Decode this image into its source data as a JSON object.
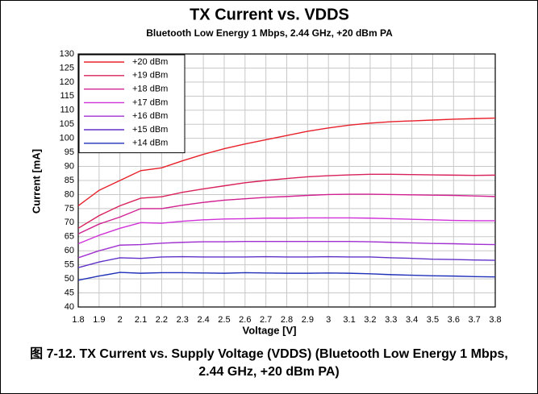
{
  "chart_data": {
    "type": "line",
    "title": "TX Current vs. VDDS",
    "subtitle": "Bluetooth Low Energy 1 Mbps, 2.44 GHz, +20 dBm PA",
    "xlabel": "Voltage [V]",
    "ylabel": "Current [mA]",
    "caption": "图 7-12. TX Current vs. Supply Voltage (VDDS) (Bluetooth Low Energy 1 Mbps, 2.44 GHz, +20 dBm PA)",
    "x": [
      1.8,
      1.9,
      2,
      2.1,
      2.2,
      2.3,
      2.4,
      2.5,
      2.6,
      2.7,
      2.8,
      2.9,
      3,
      3.1,
      3.2,
      3.3,
      3.4,
      3.5,
      3.6,
      3.7,
      3.8
    ],
    "xlim": [
      1.8,
      3.8
    ],
    "xticks": [
      1.8,
      1.9,
      2,
      2.1,
      2.2,
      2.3,
      2.4,
      2.5,
      2.6,
      2.7,
      2.8,
      2.9,
      3,
      3.1,
      3.2,
      3.3,
      3.4,
      3.5,
      3.6,
      3.7,
      3.8
    ],
    "ylim": [
      40,
      130
    ],
    "yticks": [
      40,
      45,
      50,
      55,
      60,
      65,
      70,
      75,
      80,
      85,
      90,
      95,
      100,
      105,
      110,
      115,
      120,
      125,
      130
    ],
    "grid": true,
    "legend": "upper-left",
    "series": [
      {
        "name": "+20 dBm",
        "color": "#e8202a",
        "values": [
          76,
          81.5,
          85,
          88.5,
          89.5,
          92,
          94.3,
          96.3,
          98,
          99.5,
          101,
          102.5,
          103.7,
          104.7,
          105.4,
          105.9,
          106.2,
          106.5,
          106.8,
          107,
          107.2
        ]
      },
      {
        "name": "+19 dBm",
        "color": "#d8205a",
        "values": [
          68,
          72.5,
          76,
          78.7,
          79.2,
          80.8,
          82,
          83.1,
          84.2,
          85,
          85.7,
          86.3,
          86.7,
          87,
          87.2,
          87.2,
          87.1,
          87,
          86.9,
          86.8,
          86.9
        ]
      },
      {
        "name": "+18 dBm",
        "color": "#d02090",
        "values": [
          66,
          69.5,
          72,
          75,
          75,
          76.2,
          77.2,
          78,
          78.5,
          79,
          79.3,
          79.7,
          80,
          80.1,
          80.1,
          80,
          79.9,
          79.8,
          79.7,
          79.5,
          79.3
        ]
      },
      {
        "name": "+17 dBm",
        "color": "#d030d8",
        "values": [
          62.5,
          65.5,
          68,
          70,
          69.8,
          70.5,
          71,
          71.3,
          71.4,
          71.6,
          71.6,
          71.7,
          71.7,
          71.7,
          71.6,
          71.4,
          71.2,
          71,
          70.8,
          70.7,
          70.7
        ]
      },
      {
        "name": "+16 dBm",
        "color": "#a030d0",
        "values": [
          57.5,
          60,
          62,
          62.2,
          62.7,
          63,
          63.2,
          63.2,
          63.3,
          63.3,
          63.3,
          63.3,
          63.3,
          63.3,
          63.2,
          63,
          62.8,
          62.6,
          62.5,
          62.3,
          62.2
        ]
      },
      {
        "name": "+15 dBm",
        "color": "#6030c8",
        "values": [
          54,
          56,
          57.5,
          57.3,
          57.8,
          57.9,
          57.8,
          57.8,
          57.8,
          57.9,
          57.8,
          57.8,
          57.9,
          57.8,
          57.8,
          57.5,
          57.3,
          57,
          56.9,
          56.7,
          56.6
        ]
      },
      {
        "name": "+14 dBm",
        "color": "#2030b8",
        "values": [
          49.5,
          51,
          52.3,
          52,
          52.2,
          52.2,
          52.1,
          52,
          52.2,
          52.1,
          52,
          52,
          52.1,
          52,
          51.8,
          51.5,
          51.3,
          51.1,
          51,
          50.8,
          50.7
        ]
      }
    ]
  }
}
